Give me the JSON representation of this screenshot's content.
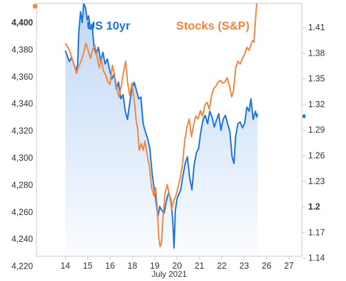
{
  "chart_data": {
    "type": "line",
    "title": "",
    "xlabel": "July 2021",
    "x_ticks": [
      "14",
      "15",
      "16",
      "18",
      "19",
      "20",
      "21",
      "22",
      "23",
      "26",
      "27"
    ],
    "x_index_range": [
      0,
      11.8
    ],
    "left_axis": {
      "label": "",
      "ticks": [
        "4,400",
        "4,380",
        "4,360",
        "4,340",
        "4,320",
        "4,300",
        "4,280",
        "4,260",
        "4,240",
        "4,220"
      ],
      "range": [
        4218,
        4402
      ],
      "series_name": "Stocks (S&P)"
    },
    "right_axis": {
      "label": "",
      "ticks": [
        "1.41",
        "1.38",
        "1.35",
        "1.32",
        "1.29",
        "1.26",
        "1.23",
        "1.2",
        "1.17",
        "1.14"
      ],
      "emphasized_tick": "1.2",
      "range": [
        1.12,
        1.425
      ],
      "series_name": "US 10yr"
    },
    "series": [
      {
        "name": "US 10yr",
        "axis": "right",
        "color": "#1a73e0",
        "points": [
          [
            0.0,
            1.368
          ],
          [
            0.08,
            1.362
          ],
          [
            0.18,
            1.355
          ],
          [
            0.28,
            1.36
          ],
          [
            0.38,
            1.352
          ],
          [
            0.48,
            1.344
          ],
          [
            0.55,
            1.352
          ],
          [
            0.6,
            1.39
          ],
          [
            0.68,
            1.415
          ],
          [
            0.75,
            1.402
          ],
          [
            0.82,
            1.425
          ],
          [
            0.9,
            1.42
          ],
          [
            0.98,
            1.405
          ],
          [
            1.04,
            1.41
          ],
          [
            1.12,
            1.395
          ],
          [
            1.2,
            1.4
          ],
          [
            1.28,
            1.372
          ],
          [
            1.38,
            1.364
          ],
          [
            1.48,
            1.372
          ],
          [
            1.58,
            1.355
          ],
          [
            1.68,
            1.366
          ],
          [
            1.78,
            1.352
          ],
          [
            1.88,
            1.358
          ],
          [
            1.98,
            1.345
          ],
          [
            2.08,
            1.334
          ],
          [
            2.18,
            1.34
          ],
          [
            2.28,
            1.322
          ],
          [
            2.38,
            1.33
          ],
          [
            2.48,
            1.31
          ],
          [
            2.58,
            1.315
          ],
          [
            2.68,
            1.295
          ],
          [
            2.78,
            1.285
          ],
          [
            2.88,
            1.305
          ],
          [
            2.98,
            1.322
          ],
          [
            3.08,
            1.33
          ],
          [
            3.18,
            1.32
          ],
          [
            3.28,
            1.31
          ],
          [
            3.38,
            1.312
          ],
          [
            3.48,
            1.28
          ],
          [
            3.58,
            1.27
          ],
          [
            3.68,
            1.262
          ],
          [
            3.78,
            1.25
          ],
          [
            3.88,
            1.22
          ],
          [
            3.98,
            1.2
          ],
          [
            4.06,
            1.185
          ],
          [
            4.14,
            1.168
          ],
          [
            4.22,
            1.18
          ],
          [
            4.32,
            1.175
          ],
          [
            4.42,
            1.172
          ],
          [
            4.52,
            1.187
          ],
          [
            4.62,
            1.197
          ],
          [
            4.72,
            1.188
          ],
          [
            4.8,
            1.165
          ],
          [
            4.86,
            1.13
          ],
          [
            4.92,
            1.175
          ],
          [
            5.0,
            1.19
          ],
          [
            5.08,
            1.195
          ],
          [
            5.16,
            1.2
          ],
          [
            5.26,
            1.217
          ],
          [
            5.36,
            1.232
          ],
          [
            5.46,
            1.24
          ],
          [
            5.56,
            1.215
          ],
          [
            5.66,
            1.2
          ],
          [
            5.76,
            1.23
          ],
          [
            5.86,
            1.245
          ],
          [
            5.96,
            1.25
          ],
          [
            6.06,
            1.27
          ],
          [
            6.16,
            1.285
          ],
          [
            6.26,
            1.29
          ],
          [
            6.36,
            1.28
          ],
          [
            6.46,
            1.295
          ],
          [
            6.56,
            1.288
          ],
          [
            6.66,
            1.276
          ],
          [
            6.76,
            1.284
          ],
          [
            6.86,
            1.292
          ],
          [
            6.96,
            1.272
          ],
          [
            7.06,
            1.285
          ],
          [
            7.16,
            1.29
          ],
          [
            7.26,
            1.28
          ],
          [
            7.36,
            1.27
          ],
          [
            7.46,
            1.24
          ],
          [
            7.54,
            1.232
          ],
          [
            7.62,
            1.265
          ],
          [
            7.72,
            1.28
          ],
          [
            7.82,
            1.282
          ],
          [
            7.92,
            1.275
          ],
          [
            8.02,
            1.28
          ],
          [
            8.12,
            1.3
          ],
          [
            8.22,
            1.295
          ],
          [
            8.3,
            1.31
          ],
          [
            8.4,
            1.285
          ],
          [
            8.5,
            1.295
          ],
          [
            8.56,
            1.288
          ],
          [
            8.6,
            1.292
          ]
        ]
      },
      {
        "name": "Stocks (S&P)",
        "axis": "left",
        "color": "#f5843c",
        "points": [
          [
            0.0,
            4373
          ],
          [
            0.08,
            4371
          ],
          [
            0.18,
            4368
          ],
          [
            0.28,
            4363
          ],
          [
            0.38,
            4358
          ],
          [
            0.5,
            4351
          ],
          [
            0.6,
            4356
          ],
          [
            0.7,
            4360
          ],
          [
            0.82,
            4366
          ],
          [
            0.92,
            4373
          ],
          [
            1.02,
            4368
          ],
          [
            1.12,
            4362
          ],
          [
            1.22,
            4368
          ],
          [
            1.32,
            4372
          ],
          [
            1.42,
            4363
          ],
          [
            1.52,
            4355
          ],
          [
            1.6,
            4362
          ],
          [
            1.7,
            4353
          ],
          [
            1.8,
            4350
          ],
          [
            1.9,
            4345
          ],
          [
            2.0,
            4343
          ],
          [
            2.1,
            4357
          ],
          [
            2.2,
            4350
          ],
          [
            2.3,
            4340
          ],
          [
            2.4,
            4334
          ],
          [
            2.5,
            4342
          ],
          [
            2.6,
            4352
          ],
          [
            2.7,
            4360
          ],
          [
            2.78,
            4345
          ],
          [
            2.88,
            4335
          ],
          [
            2.98,
            4344
          ],
          [
            3.08,
            4332
          ],
          [
            3.16,
            4318
          ],
          [
            3.24,
            4310
          ],
          [
            3.3,
            4295
          ],
          [
            3.4,
            4300
          ],
          [
            3.48,
            4295
          ],
          [
            3.56,
            4302
          ],
          [
            3.66,
            4292
          ],
          [
            3.76,
            4283
          ],
          [
            3.86,
            4268
          ],
          [
            3.96,
            4262
          ],
          [
            4.04,
            4268
          ],
          [
            4.1,
            4255
          ],
          [
            4.18,
            4232
          ],
          [
            4.24,
            4225
          ],
          [
            4.3,
            4228
          ],
          [
            4.36,
            4245
          ],
          [
            4.46,
            4264
          ],
          [
            4.56,
            4270
          ],
          [
            4.66,
            4262
          ],
          [
            4.76,
            4252
          ],
          [
            4.84,
            4258
          ],
          [
            4.94,
            4262
          ],
          [
            5.04,
            4268
          ],
          [
            5.14,
            4275
          ],
          [
            5.24,
            4285
          ],
          [
            5.34,
            4302
          ],
          [
            5.44,
            4312
          ],
          [
            5.54,
            4318
          ],
          [
            5.64,
            4305
          ],
          [
            5.74,
            4314
          ],
          [
            5.84,
            4320
          ],
          [
            5.94,
            4318
          ],
          [
            6.04,
            4324
          ],
          [
            6.14,
            4320
          ],
          [
            6.24,
            4328
          ],
          [
            6.34,
            4330
          ],
          [
            6.44,
            4325
          ],
          [
            6.54,
            4335
          ],
          [
            6.64,
            4340
          ],
          [
            6.74,
            4342
          ],
          [
            6.84,
            4345
          ],
          [
            6.94,
            4346
          ],
          [
            7.04,
            4344
          ],
          [
            7.14,
            4345
          ],
          [
            7.24,
            4348
          ],
          [
            7.34,
            4342
          ],
          [
            7.44,
            4334
          ],
          [
            7.52,
            4338
          ],
          [
            7.62,
            4355
          ],
          [
            7.72,
            4360
          ],
          [
            7.82,
            4358
          ],
          [
            7.92,
            4362
          ],
          [
            8.02,
            4365
          ],
          [
            8.12,
            4370
          ],
          [
            8.22,
            4368
          ],
          [
            8.3,
            4372
          ],
          [
            8.38,
            4375
          ],
          [
            8.44,
            4374
          ],
          [
            8.5,
            4390
          ],
          [
            8.56,
            4402
          ]
        ]
      }
    ],
    "area_fill": {
      "series": "US 10yr",
      "color": "#1a73e0",
      "opacity_top": 0.28,
      "opacity_bottom": 0.02
    },
    "current_markers": {
      "left": {
        "value": 4400,
        "color": "#f5843c"
      },
      "right": {
        "value": 1.289,
        "color": "#1a73e0"
      }
    },
    "legend": [
      {
        "label": "US 10yr",
        "color": "#1a73e0",
        "placement": "top-left"
      },
      {
        "label": "Stocks (S&P)",
        "color": "#f5843c",
        "placement": "top-right"
      }
    ],
    "grid": false,
    "frame_color": "#c9c9c9"
  }
}
